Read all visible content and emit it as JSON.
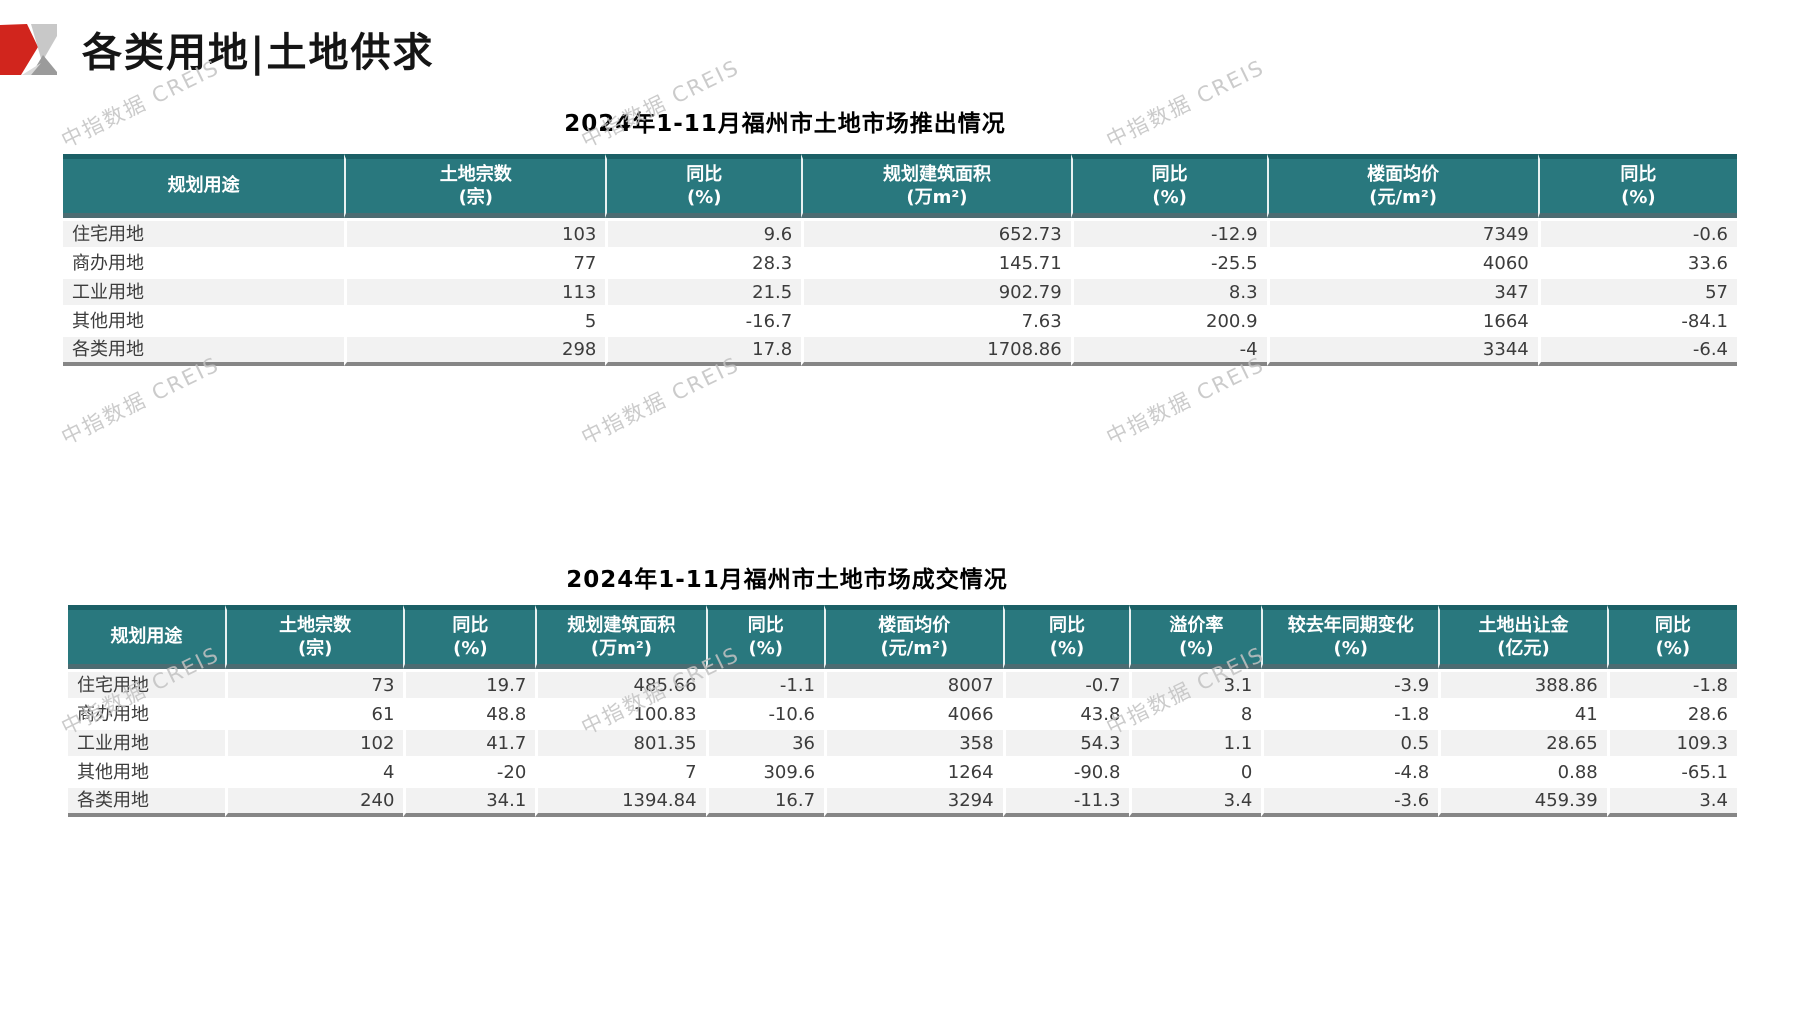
{
  "header": {
    "title": "各类用地|土地供求"
  },
  "watermark": {
    "text": "中指数据 CREIS"
  },
  "colors": {
    "header_teal": "#29787E",
    "header_top_band": "#1B6066",
    "header_bottom_band": "#4C6C72",
    "stripe_gray": "#F2F2F2",
    "accent_red": "#D1251D",
    "logo_light_gray": "#C8C8C8",
    "logo_mid_gray": "#9B9B9B",
    "watermark_gray": "#C3C3C3"
  },
  "supply_table": {
    "title": "2024年1-11月福州市土地市场推出情况",
    "columns": [
      {
        "label": "规划用途",
        "unit": ""
      },
      {
        "label": "土地宗数",
        "unit": "(宗)"
      },
      {
        "label": "同比",
        "unit": "(%)"
      },
      {
        "label": "规划建筑面积",
        "unit": "(万m²)"
      },
      {
        "label": "同比",
        "unit": "(%)"
      },
      {
        "label": "楼面均价",
        "unit": "(元/m²)"
      },
      {
        "label": "同比",
        "unit": "(%)"
      }
    ],
    "rows": [
      [
        "住宅用地",
        "103",
        "9.6",
        "652.73",
        "-12.9",
        "7349",
        "-0.6"
      ],
      [
        "商办用地",
        "77",
        "28.3",
        "145.71",
        "-25.5",
        "4060",
        "33.6"
      ],
      [
        "工业用地",
        "113",
        "21.5",
        "902.79",
        "8.3",
        "347",
        "57"
      ],
      [
        "其他用地",
        "5",
        "-16.7",
        "7.63",
        "200.9",
        "1664",
        "-84.1"
      ],
      [
        "各类用地",
        "298",
        "17.8",
        "1708.86",
        "-4",
        "3344",
        "-6.4"
      ]
    ]
  },
  "deal_table": {
    "title": "2024年1-11月福州市土地市场成交情况",
    "columns": [
      {
        "label": "规划用途",
        "unit": ""
      },
      {
        "label": "土地宗数",
        "unit": "(宗)"
      },
      {
        "label": "同比",
        "unit": "(%)"
      },
      {
        "label": "规划建筑面积",
        "unit": "(万m²)"
      },
      {
        "label": "同比",
        "unit": "(%)"
      },
      {
        "label": "楼面均价",
        "unit": "(元/m²)"
      },
      {
        "label": "同比",
        "unit": "(%)"
      },
      {
        "label": "溢价率",
        "unit": "(%)"
      },
      {
        "label": "较去年同期变化",
        "unit": "(%)"
      },
      {
        "label": "土地出让金",
        "unit": "(亿元)"
      },
      {
        "label": "同比",
        "unit": "(%)"
      }
    ],
    "rows": [
      [
        "住宅用地",
        "73",
        "19.7",
        "485.66",
        "-1.1",
        "8007",
        "-0.7",
        "3.1",
        "-3.9",
        "388.86",
        "-1.8"
      ],
      [
        "商办用地",
        "61",
        "48.8",
        "100.83",
        "-10.6",
        "4066",
        "43.8",
        "8",
        "-1.8",
        "41",
        "28.6"
      ],
      [
        "工业用地",
        "102",
        "41.7",
        "801.35",
        "36",
        "358",
        "54.3",
        "1.1",
        "0.5",
        "28.65",
        "109.3"
      ],
      [
        "其他用地",
        "4",
        "-20",
        "7",
        "309.6",
        "1264",
        "-90.8",
        "0",
        "-4.8",
        "0.88",
        "-65.1"
      ],
      [
        "各类用地",
        "240",
        "34.1",
        "1394.84",
        "16.7",
        "3294",
        "-11.3",
        "3.4",
        "-3.6",
        "459.39",
        "3.4"
      ]
    ]
  }
}
